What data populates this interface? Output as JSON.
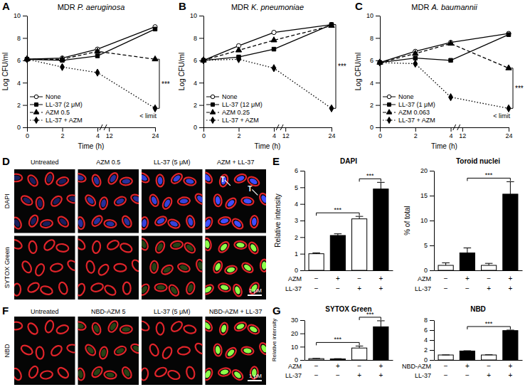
{
  "chart_data": [
    {
      "panel": "A",
      "type": "line",
      "title": "MDR P. aeruginosa",
      "x_label": "Time (h)",
      "y_label": "Log CFU/ml",
      "x": [
        0,
        2,
        4,
        24
      ],
      "xlim": [
        0,
        24
      ],
      "xticks": [
        0,
        2,
        4,
        12,
        24
      ],
      "ylim": [
        0,
        10
      ],
      "yticks": [
        0,
        2,
        4,
        6,
        8,
        10
      ],
      "legend": "lower left",
      "series": [
        {
          "name": "None",
          "color": "#000000",
          "marker": "open-circle",
          "line_style": "solid",
          "values": [
            6.1,
            6.2,
            7.0,
            9.0
          ]
        },
        {
          "name": "LL-37 (2 μM)",
          "color": "#000000",
          "marker": "square",
          "line_style": "solid",
          "values": [
            6.1,
            6.0,
            6.4,
            8.8
          ]
        },
        {
          "name": "AZM 0.5",
          "color": "#000000",
          "marker": "triangle",
          "line_style": "dashed",
          "values": [
            6.1,
            6.1,
            6.8,
            6.1
          ]
        },
        {
          "name": "LL-37 + AZM",
          "color": "#000000",
          "marker": "diamond",
          "line_style": "dotted",
          "values": [
            6.1,
            5.4,
            4.9,
            1.7
          ]
        }
      ],
      "annotations": [
        {
          "text": "***",
          "series": [
            2,
            3
          ]
        },
        {
          "text": "< limit",
          "series": [
            3
          ]
        }
      ]
    },
    {
      "panel": "B",
      "type": "line",
      "title": "MDR K. pneumoniae",
      "x_label": "Time (h)",
      "y_label": "Log CFU/ml",
      "x": [
        0,
        2,
        4,
        24
      ],
      "xlim": [
        0,
        24
      ],
      "xticks": [
        0,
        2,
        4,
        12,
        24
      ],
      "ylim": [
        0,
        10
      ],
      "yticks": [
        0,
        2,
        4,
        6,
        8,
        10
      ],
      "legend": "lower left",
      "series": [
        {
          "name": "None",
          "color": "#000000",
          "marker": "open-circle",
          "line_style": "solid",
          "values": [
            6.0,
            7.3,
            8.5,
            9.2
          ]
        },
        {
          "name": "LL-37 (12 μM)",
          "color": "#000000",
          "marker": "square",
          "line_style": "solid",
          "values": [
            6.0,
            6.3,
            7.0,
            9.2
          ]
        },
        {
          "name": "AZM 0.25",
          "color": "#000000",
          "marker": "triangle",
          "line_style": "dashed",
          "values": [
            6.0,
            6.9,
            7.8,
            9.1
          ]
        },
        {
          "name": "LL-37 + AZM",
          "color": "#000000",
          "marker": "diamond",
          "line_style": "dotted",
          "values": [
            6.0,
            6.1,
            5.3,
            1.7
          ]
        }
      ],
      "annotations": [
        {
          "text": "***",
          "series": [
            0,
            3
          ]
        }
      ]
    },
    {
      "panel": "C",
      "type": "line",
      "title": "MDR A. baumannii",
      "x_label": "Time (h)",
      "y_label": "Log CFU/ml",
      "x": [
        0,
        2,
        4,
        24
      ],
      "xlim": [
        0,
        24
      ],
      "xticks": [
        0,
        2,
        4,
        12,
        24
      ],
      "ylim": [
        0,
        10
      ],
      "yticks": [
        0,
        2,
        4,
        6,
        8,
        10
      ],
      "legend": "lower left",
      "series": [
        {
          "name": "None",
          "color": "#000000",
          "marker": "open-circle",
          "line_style": "solid",
          "values": [
            5.8,
            6.8,
            7.6,
            8.4
          ]
        },
        {
          "name": "LL-37 (1 μM)",
          "color": "#000000",
          "marker": "square",
          "line_style": "solid",
          "values": [
            5.8,
            6.2,
            6.0,
            8.3
          ]
        },
        {
          "name": "AZM 0.063",
          "color": "#000000",
          "marker": "triangle",
          "line_style": "dashed",
          "values": [
            5.8,
            6.6,
            7.5,
            5.3
          ]
        },
        {
          "name": "LL-37 + AZM",
          "color": "#000000",
          "marker": "diamond",
          "line_style": "dotted",
          "values": [
            5.8,
            5.7,
            2.7,
            1.7
          ]
        }
      ],
      "annotations": [
        {
          "text": "***",
          "series": [
            2,
            3
          ]
        },
        {
          "text": "< limit",
          "series": [
            3
          ]
        }
      ]
    },
    {
      "panel": "D",
      "type": "image",
      "columns": [
        "Untreated",
        "AZM 0.5",
        "LL-37 (5 μM)",
        "AZM + LL-37"
      ],
      "rows": [
        "DAPI",
        "SYTOX Green"
      ],
      "annotations": [
        "T",
        "T"
      ],
      "scale_bar": "1 μM"
    },
    {
      "panel": "E",
      "type": "bar",
      "title": "DAPI",
      "y_label": "Relative intensity",
      "categories": [
        null,
        null,
        null,
        null
      ],
      "values": [
        1.0,
        2.1,
        3.1,
        4.9
      ],
      "errors": [
        0.05,
        0.1,
        0.15,
        0.4
      ],
      "colors": [
        "#ffffff",
        "#000000",
        "#ffffff",
        "#000000"
      ],
      "ylim": [
        0,
        6
      ],
      "yticks": [
        0,
        1,
        2,
        3,
        4,
        5,
        6
      ],
      "conditions": [
        {
          "label": "AZM",
          "values": [
            "−",
            "+",
            "−",
            "+"
          ]
        },
        {
          "label": "LL-37",
          "values": [
            "−",
            "−",
            "+",
            "+"
          ]
        }
      ],
      "annotations": [
        {
          "text": "***",
          "from": 0,
          "to": 2
        },
        {
          "text": "***",
          "from": 2,
          "to": 3
        }
      ]
    },
    {
      "type": "bar",
      "title": "Toroid nuclei",
      "y_label": "% of total",
      "categories": [
        null,
        null,
        null,
        null
      ],
      "values": [
        1.0,
        3.5,
        1.0,
        15.3
      ],
      "errors": [
        0.5,
        1.0,
        0.4,
        2.5
      ],
      "colors": [
        "#ffffff",
        "#000000",
        "#ffffff",
        "#000000"
      ],
      "ylim": [
        0,
        20
      ],
      "yticks": [
        0,
        5,
        10,
        15,
        20
      ],
      "conditions": [
        {
          "label": "AZM",
          "values": [
            "−",
            "+",
            "−",
            "+"
          ]
        },
        {
          "label": "LL-37",
          "values": [
            "−",
            "−",
            "+",
            "+"
          ]
        }
      ],
      "annotations": [
        {
          "text": "***",
          "from": 1,
          "to": 3
        }
      ]
    },
    {
      "panel": "F",
      "type": "image",
      "columns": [
        "Untreated",
        "NBD-AZM 5",
        "LL-37 (5 μM)",
        "NBD-AZM + LL-37"
      ],
      "rows": [
        "NBD"
      ],
      "scale_bar": "1 μM"
    },
    {
      "panel": "G",
      "type": "bar",
      "title": "SYTOX Green",
      "y_label": "Relative intensity",
      "categories": [
        null,
        null,
        null,
        null
      ],
      "values": [
        1.0,
        0.8,
        9.0,
        25.0
      ],
      "errors": [
        0.2,
        0.2,
        1.5,
        4.5
      ],
      "colors": [
        "#ffffff",
        "#000000",
        "#ffffff",
        "#000000"
      ],
      "ylim": [
        0,
        30
      ],
      "yticks": [
        0,
        10,
        20,
        30
      ],
      "conditions": [
        {
          "label": "AZM",
          "values": [
            "−",
            "+",
            "−",
            "+"
          ]
        },
        {
          "label": "LL-37",
          "values": [
            "−",
            "−",
            "+",
            "+"
          ]
        }
      ],
      "annotations": [
        {
          "text": "***",
          "from": 0,
          "to": 2
        },
        {
          "text": "***",
          "from": 2,
          "to": 3
        }
      ]
    },
    {
      "type": "bar",
      "title": "NBD",
      "categories": [
        null,
        null,
        null,
        null
      ],
      "values": [
        1.0,
        1.8,
        1.0,
        5.9
      ],
      "errors": [
        0.02,
        0.05,
        0.05,
        0.1
      ],
      "colors": [
        "#ffffff",
        "#000000",
        "#ffffff",
        "#000000"
      ],
      "ylim": [
        0,
        8
      ],
      "yticks": [
        0,
        2,
        4,
        6,
        8
      ],
      "conditions": [
        {
          "label": "NBD-AZM",
          "values": [
            "−",
            "+",
            "−",
            "+"
          ]
        },
        {
          "label": "LL-37",
          "values": [
            "−",
            "−",
            "+",
            "+"
          ]
        }
      ],
      "annotations": [
        {
          "text": "***",
          "from": 1,
          "to": 3
        }
      ]
    }
  ]
}
